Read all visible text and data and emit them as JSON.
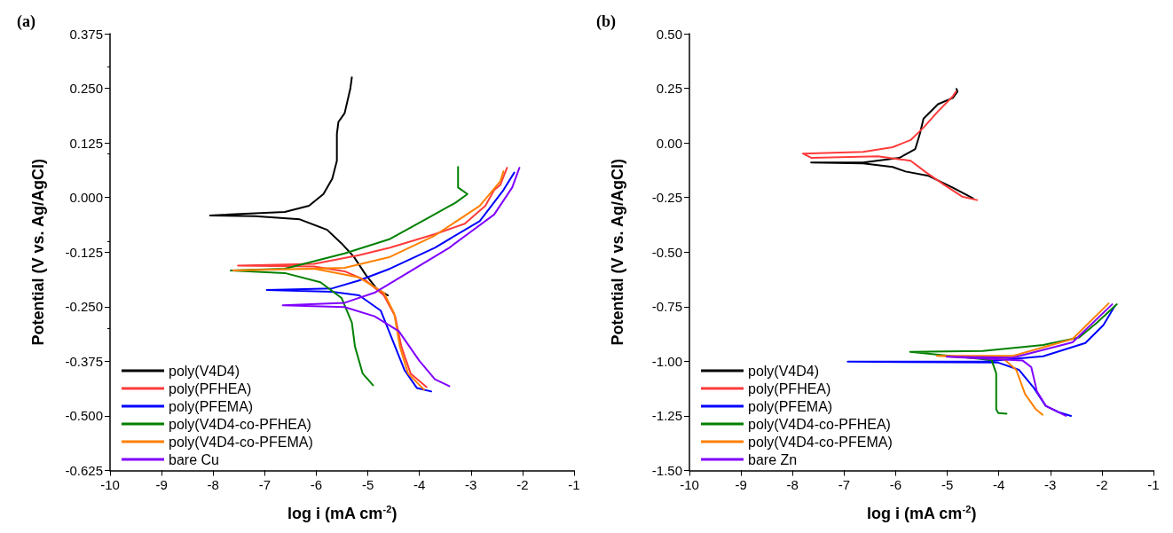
{
  "chart_data": [
    {
      "type": "line",
      "title": "(a)",
      "xlabel": "log i (mA cm$^{-2}$)",
      "ylabel": "Potential (V vs. Ag/AgCl)",
      "xlim": [
        -10,
        -1
      ],
      "xticks": [
        -10,
        -9,
        -8,
        -7,
        -6,
        -5,
        -4,
        -3,
        -2,
        -1
      ],
      "ylim": [
        -0.625,
        0.375
      ],
      "yticks": [
        {
          "value": -0.625,
          "label": "-0.625"
        },
        {
          "value": -0.5,
          "label": "-0.500"
        },
        {
          "value": -0.375,
          "label": "-0.375"
        },
        {
          "value": -0.25,
          "label": "-0.250"
        },
        {
          "value": -0.125,
          "label": "-0.125"
        },
        {
          "value": 0,
          "label": "0.000"
        },
        {
          "value": 0.125,
          "label": "0.125"
        },
        {
          "value": 0.25,
          "label": "0.250"
        },
        {
          "value": 0.375,
          "label": "0.375"
        }
      ],
      "grid": false,
      "legend": "bottom left",
      "marker": "none",
      "line_style": "solid",
      "series": [
        {
          "name": "poly(V4D4)",
          "color": "#000000",
          "x": [
            -4.61,
            -4.82,
            -5.04,
            -5.27,
            -5.51,
            -5.79,
            -6.32,
            -7.19,
            -8.06,
            -6.61,
            -6.14,
            -5.86,
            -5.69,
            -5.6,
            -5.6,
            -5.57,
            -5.45,
            -5.34,
            -5.31
          ],
          "values": [
            -0.224,
            -0.21,
            -0.177,
            -0.136,
            -0.105,
            -0.074,
            -0.05,
            -0.043,
            -0.041,
            -0.033,
            -0.019,
            0.008,
            0.043,
            0.084,
            0.146,
            0.173,
            0.193,
            0.249,
            0.275
          ]
        },
        {
          "name": "poly(PFHEA)",
          "color": "#ff3b3b",
          "x": [
            -3.86,
            -4.17,
            -4.35,
            -4.47,
            -4.69,
            -5.04,
            -5.45,
            -6.04,
            -7.52,
            -6.04,
            -5.17,
            -4.57,
            -3.7,
            -3.12,
            -2.72,
            -2.55,
            -2.43,
            -2.3
          ],
          "values": [
            -0.434,
            -0.403,
            -0.341,
            -0.272,
            -0.224,
            -0.19,
            -0.169,
            -0.158,
            -0.156,
            -0.152,
            -0.132,
            -0.115,
            -0.084,
            -0.06,
            -0.019,
            0.017,
            0.029,
            0.068
          ]
        },
        {
          "name": "poly(PFEMA)",
          "color": "#0000ff",
          "x": [
            -3.77,
            -4.05,
            -4.29,
            -4.52,
            -4.75,
            -5.17,
            -5.69,
            -6.96,
            -5.69,
            -5.17,
            -4.57,
            -3.7,
            -2.83,
            -2.37,
            -2.16
          ],
          "values": [
            -0.444,
            -0.436,
            -0.395,
            -0.327,
            -0.259,
            -0.224,
            -0.216,
            -0.212,
            -0.208,
            -0.19,
            -0.163,
            -0.115,
            -0.054,
            0.017,
            0.057
          ]
        },
        {
          "name": "poly(V4D4-co-PFHEA)",
          "color": "#008000",
          "x": [
            -4.9,
            -5.1,
            -5.25,
            -5.31,
            -5.51,
            -5.92,
            -6.61,
            -7.66,
            -6.61,
            -5.45,
            -4.57,
            -3.82,
            -3.3,
            -3.09,
            -3.07,
            -3.25,
            -3.25
          ],
          "values": [
            -0.43,
            -0.403,
            -0.341,
            -0.286,
            -0.23,
            -0.194,
            -0.173,
            -0.167,
            -0.163,
            -0.128,
            -0.095,
            -0.046,
            -0.012,
            0.006,
            0.008,
            0.023,
            0.07
          ]
        },
        {
          "name": "poly(V4D4-co-PFEMA)",
          "color": "#ff8000",
          "x": [
            -3.91,
            -4.22,
            -4.38,
            -4.49,
            -4.69,
            -5.17,
            -6.04,
            -7.61,
            -5.45,
            -4.57,
            -3.7,
            -2.83,
            -2.43,
            -2.37
          ],
          "values": [
            -0.44,
            -0.403,
            -0.341,
            -0.265,
            -0.218,
            -0.183,
            -0.163,
            -0.167,
            -0.161,
            -0.136,
            -0.087,
            -0.019,
            0.037,
            0.06
          ]
        },
        {
          "name": "bare Cu",
          "color": "#8000ff",
          "x": [
            -3.42,
            -3.7,
            -4.0,
            -4.4,
            -4.87,
            -5.45,
            -6.65,
            -5.45,
            -4.87,
            -4.29,
            -3.42,
            -2.55,
            -2.2,
            -2.06
          ],
          "values": [
            -0.432,
            -0.416,
            -0.374,
            -0.306,
            -0.272,
            -0.251,
            -0.247,
            -0.241,
            -0.218,
            -0.177,
            -0.115,
            -0.039,
            0.023,
            0.068
          ]
        }
      ]
    },
    {
      "type": "line",
      "title": "(b)",
      "xlabel": "log i (mA cm$^{-2}$)",
      "ylabel": "Potential (V vs. Ag/AgCl)",
      "xlim": [
        -10,
        -1
      ],
      "xticks": [
        -10,
        -9,
        -8,
        -7,
        -6,
        -5,
        -4,
        -3,
        -2,
        -1
      ],
      "ylim": [
        -1.5,
        0.5
      ],
      "yticks": [
        {
          "value": -1.5,
          "label": "-1.50"
        },
        {
          "value": -1.25,
          "label": "-1.25"
        },
        {
          "value": -1,
          "label": "-1.00"
        },
        {
          "value": -0.75,
          "label": "-0.75"
        },
        {
          "value": -0.5,
          "label": "-0.50"
        },
        {
          "value": -0.25,
          "label": "-0.25"
        },
        {
          "value": 0,
          "label": "0.00"
        },
        {
          "value": 0.25,
          "label": "0.25"
        },
        {
          "value": 0.5,
          "label": "0.50"
        }
      ],
      "grid": false,
      "legend": "bottom left",
      "marker": "none",
      "line_style": "solid",
      "series": [
        {
          "name": "poly(V4D4)",
          "color": "#000000",
          "x": [
            -4.5,
            -4.89,
            -5.36,
            -5.81,
            -6.06,
            -6.63,
            -7.64,
            -6.63,
            -5.93,
            -5.62,
            -5.53,
            -5.46,
            -5.18,
            -4.89,
            -4.8,
            -4.82
          ],
          "values": [
            -0.254,
            -0.205,
            -0.151,
            -0.131,
            -0.11,
            -0.094,
            -0.09,
            -0.09,
            -0.069,
            -0.028,
            0.042,
            0.111,
            0.177,
            0.206,
            0.235,
            0.247
          ]
        },
        {
          "name": "poly(PFHEA)",
          "color": "#ff3b3b",
          "x": [
            -4.42,
            -4.71,
            -5.06,
            -5.41,
            -5.71,
            -6.34,
            -7.63,
            -7.8,
            -6.63,
            -6.06,
            -5.71,
            -5.46,
            -5.18,
            -4.89,
            -4.83
          ],
          "values": [
            -0.262,
            -0.246,
            -0.192,
            -0.135,
            -0.082,
            -0.061,
            -0.069,
            -0.049,
            -0.041,
            -0.02,
            0.013,
            0.07,
            0.144,
            0.214,
            0.235
          ]
        },
        {
          "name": "poly(PFEMA)",
          "color": "#0000ff",
          "x": [
            -2.6,
            -2.84,
            -3.09,
            -3.32,
            -3.61,
            -4.01,
            -6.93,
            -4.31,
            -3.14,
            -2.32,
            -1.97,
            -1.75
          ],
          "values": [
            -1.25,
            -1.233,
            -1.204,
            -1.122,
            -1.039,
            -1.006,
            -1.002,
            -1.002,
            -0.977,
            -0.916,
            -0.834,
            -0.747
          ]
        },
        {
          "name": "poly(V4D4-co-PFHEA)",
          "color": "#008000",
          "x": [
            -3.85,
            -4.01,
            -4.05,
            -4.05,
            -4.14,
            -5.72,
            -4.31,
            -3.14,
            -2.44,
            -2.09,
            -1.71
          ],
          "values": [
            -1.24,
            -1.237,
            -1.22,
            -1.056,
            -0.994,
            -0.957,
            -0.953,
            -0.925,
            -0.891,
            -0.822,
            -0.739
          ]
        },
        {
          "name": "poly(V4D4-co-PFEMA)",
          "color": "#ff8000",
          "x": [
            -3.15,
            -3.28,
            -3.49,
            -3.66,
            -3.89,
            -5.2,
            -3.72,
            -2.57,
            -1.87
          ],
          "values": [
            -1.245,
            -1.22,
            -1.15,
            -1.04,
            -0.991,
            -0.975,
            -0.975,
            -0.898,
            -0.735
          ]
        },
        {
          "name": "bare Zn",
          "color": "#8000ff",
          "x": [
            -2.7,
            -3.09,
            -3.26,
            -3.37,
            -3.54,
            -5.01,
            -3.72,
            -2.57,
            -1.8
          ],
          "values": [
            -1.25,
            -1.204,
            -1.138,
            -1.027,
            -0.996,
            -0.979,
            -0.983,
            -0.913,
            -0.739
          ]
        }
      ]
    }
  ]
}
